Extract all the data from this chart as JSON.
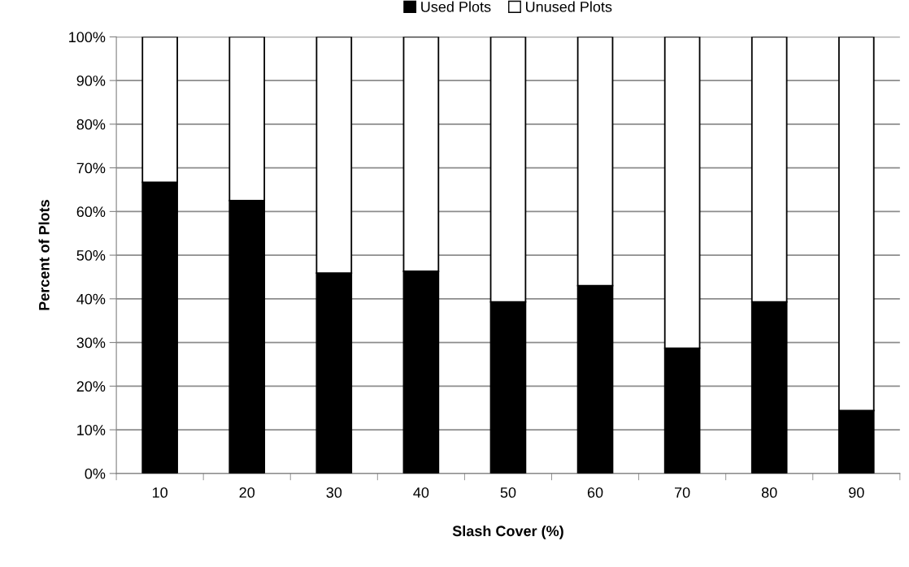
{
  "chart_data": {
    "type": "bar",
    "stacked": true,
    "xlabel": "Slash Cover (%)",
    "ylabel": "Percent of Plots",
    "categories": [
      "10",
      "20",
      "30",
      "40",
      "50",
      "60",
      "70",
      "80",
      "90"
    ],
    "series": [
      {
        "name": "Used Plots",
        "color": "#000000",
        "values": [
          66.7,
          62.5,
          45.9,
          46.3,
          39.3,
          43.0,
          28.7,
          39.3,
          14.4
        ]
      },
      {
        "name": "Unused Plots",
        "color": "#ffffff",
        "values": [
          33.3,
          37.5,
          54.1,
          53.7,
          60.7,
          57.0,
          71.3,
          60.7,
          85.6
        ]
      }
    ],
    "ylim": [
      0,
      100
    ],
    "yticks": [
      {
        "value": 0,
        "label": "0%"
      },
      {
        "value": 10,
        "label": "10%"
      },
      {
        "value": 20,
        "label": "20%"
      },
      {
        "value": 30,
        "label": "30%"
      },
      {
        "value": 40,
        "label": "40%"
      },
      {
        "value": 50,
        "label": "50%"
      },
      {
        "value": 60,
        "label": "60%"
      },
      {
        "value": 70,
        "label": "70%"
      },
      {
        "value": 80,
        "label": "80%"
      },
      {
        "value": 90,
        "label": "90%"
      },
      {
        "value": 100,
        "label": "100%"
      }
    ],
    "grid": "y",
    "legend": "top"
  }
}
